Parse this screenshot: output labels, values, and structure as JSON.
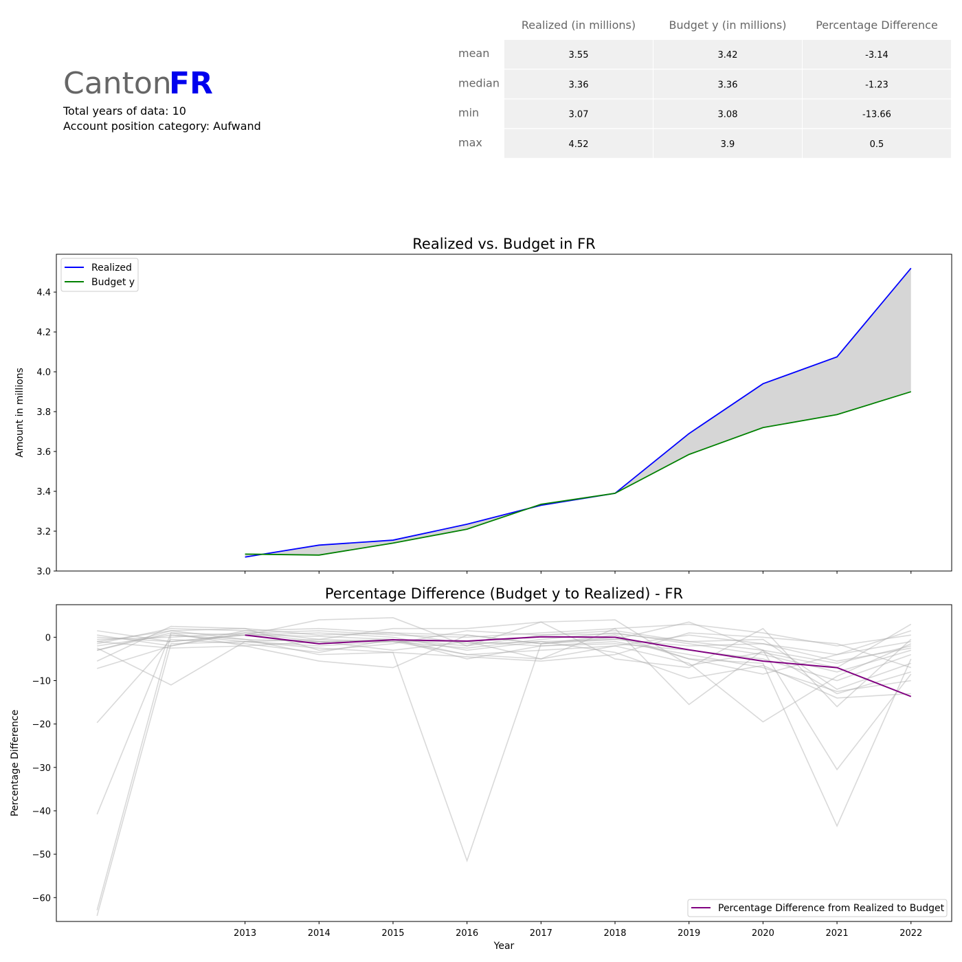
{
  "header": {
    "canton_word": "Canton",
    "canton_code": "FR",
    "code_color": "#0000ee",
    "years_line": "Total years of data: 10",
    "category_line": "Account position category: Aufwand"
  },
  "stats_table": {
    "columns": [
      "Realized (in millions)",
      "Budget y (in millions)",
      "Percentage Difference"
    ],
    "rows": [
      {
        "label": "mean",
        "values": [
          "3.55",
          "3.42",
          "-3.14"
        ]
      },
      {
        "label": "median",
        "values": [
          "3.36",
          "3.36",
          "-1.23"
        ]
      },
      {
        "label": "min",
        "values": [
          "3.07",
          "3.08",
          "-13.66"
        ]
      },
      {
        "label": "max",
        "values": [
          "4.52",
          "3.9",
          "0.5"
        ]
      }
    ]
  },
  "chart_data": [
    {
      "type": "line",
      "title": "Realized vs. Budget in FR",
      "xlabel": "",
      "ylabel": "Amount in millions",
      "x": [
        2013,
        2014,
        2015,
        2016,
        2017,
        2018,
        2019,
        2020,
        2021,
        2022
      ],
      "xlim": [
        2010.45,
        2022.55
      ],
      "ylim": [
        3.0,
        4.59
      ],
      "yticks": [
        "3.0",
        "3.2",
        "3.4",
        "3.6",
        "3.8",
        "4.0",
        "4.2",
        "4.4"
      ],
      "fill_between": true,
      "legend": "top-left",
      "series": [
        {
          "name": "Realized",
          "color": "#0000ff",
          "values": [
            3.07,
            3.13,
            3.155,
            3.235,
            3.33,
            3.39,
            3.69,
            3.94,
            4.075,
            4.52
          ]
        },
        {
          "name": "Budget y",
          "color": "#008000",
          "values": [
            3.085,
            3.08,
            3.14,
            3.21,
            3.335,
            3.39,
            3.585,
            3.72,
            3.785,
            3.9
          ]
        }
      ]
    },
    {
      "type": "line",
      "title": "Percentage Difference (Budget y to Realized) - FR",
      "xlabel": "Year",
      "ylabel": "Percentage Difference",
      "xticks": [
        "2013",
        "2014",
        "2015",
        "2016",
        "2017",
        "2018",
        "2019",
        "2020",
        "2021",
        "2022"
      ],
      "xlim": [
        2010.45,
        2022.55
      ],
      "ylim": [
        -65.5,
        7.5
      ],
      "yticks": [
        "0",
        "−10",
        "−20",
        "−30",
        "−40",
        "−50",
        "−60"
      ],
      "ytick_values": [
        0,
        -10,
        -20,
        -30,
        -40,
        -50,
        -60
      ],
      "legend": "bottom-right",
      "highlight": {
        "name": "Percentage Difference from Realized to Budget",
        "color": "#800080",
        "x": [
          2013,
          2014,
          2015,
          2016,
          2017,
          2018,
          2019,
          2020,
          2021,
          2022
        ],
        "values": [
          0.5,
          -1.5,
          -0.6,
          -0.9,
          0.1,
          0.0,
          -2.9,
          -5.5,
          -7.0,
          -13.66
        ]
      },
      "background_color": "#aaaaaa",
      "background_x": [
        2011,
        2012,
        2013,
        2014,
        2015,
        2016,
        2017,
        2018,
        2019,
        2020,
        2021,
        2022
      ],
      "background_series": [
        [
          1.5,
          -1.0,
          0.5,
          0.2,
          -0.5,
          -2.0,
          0.5,
          0.8,
          -1.0,
          -3.0,
          -6.0,
          -2.0
        ],
        [
          -1.0,
          1.5,
          2.0,
          0.5,
          1.0,
          -1.5,
          -1.0,
          -0.5,
          -2.0,
          -1.5,
          -4.0,
          -1.0
        ],
        [
          -2.0,
          0.5,
          -1.0,
          -2.0,
          -1.0,
          -2.5,
          -0.5,
          1.0,
          -1.5,
          -4.0,
          -8.0,
          -3.0
        ],
        [
          0.5,
          -2.0,
          1.0,
          1.5,
          0.5,
          0.0,
          1.0,
          2.0,
          3.0,
          1.0,
          -2.0,
          0.5
        ],
        [
          -3.0,
          1.0,
          -2.0,
          -1.0,
          -3.0,
          -1.0,
          -2.0,
          -1.5,
          -3.0,
          -5.0,
          -10.0,
          -4.0
        ],
        [
          -5.5,
          2.5,
          2.0,
          -3.0,
          -1.5,
          1.5,
          0.5,
          1.5,
          -1.0,
          -0.5,
          -12.0,
          -6.0
        ],
        [
          -7.2,
          -2.0,
          1.5,
          2.0,
          1.0,
          0.5,
          -1.5,
          -0.5,
          3.5,
          -3.0,
          -13.0,
          -8.0
        ],
        [
          -1.5,
          2.0,
          1.5,
          -0.5,
          2.0,
          2.0,
          3.5,
          4.0,
          -6.5,
          -3.5,
          -7.0,
          3.0
        ],
        [
          -19.7,
          -0.5,
          -1.5,
          -3.5,
          -0.5,
          -5.0,
          -2.0,
          -1.0,
          -4.0,
          -7.0,
          -12.5,
          -10.0
        ],
        [
          -40.8,
          1.0,
          0.5,
          1.0,
          0.0,
          -3.0,
          -1.0,
          -3.5,
          -9.5,
          -6.5,
          -14.0,
          -13.0
        ],
        [
          -62.9,
          0.5,
          -0.5,
          -1.0,
          -0.5,
          -4.0,
          -3.0,
          -2.0,
          -6.0,
          -19.5,
          -9.0,
          -1.5
        ],
        [
          -64.2,
          -1.5,
          -1.0,
          -2.5,
          -3.5,
          -51.5,
          -1.5,
          0.0,
          -5.0,
          -6.0,
          -43.5,
          -5.0
        ],
        [
          -2.5,
          -11.0,
          -1.0,
          -0.5,
          -1.0,
          -1.0,
          -5.0,
          2.0,
          -15.5,
          -3.0,
          -30.5,
          -8.5
        ],
        [
          0.0,
          -1.0,
          0.5,
          4.0,
          4.5,
          -2.0,
          3.5,
          -5.0,
          -7.0,
          2.0,
          -16.0,
          -0.5
        ],
        [
          -3.0,
          1.5,
          -0.5,
          -4.0,
          -3.5,
          -4.5,
          -5.5,
          -4.0,
          1.0,
          0.0,
          -1.5,
          -7.0
        ],
        [
          -1.0,
          -2.5,
          -2.0,
          -5.5,
          -7.0,
          0.5,
          -1.5,
          0.5,
          -5.0,
          -8.5,
          -4.0,
          1.5
        ],
        [
          -0.5,
          0.0,
          1.0,
          -1.0,
          -1.0,
          -4.0,
          -5.0,
          -2.0,
          0.5,
          -1.5,
          -5.5,
          -2.5
        ]
      ]
    }
  ]
}
